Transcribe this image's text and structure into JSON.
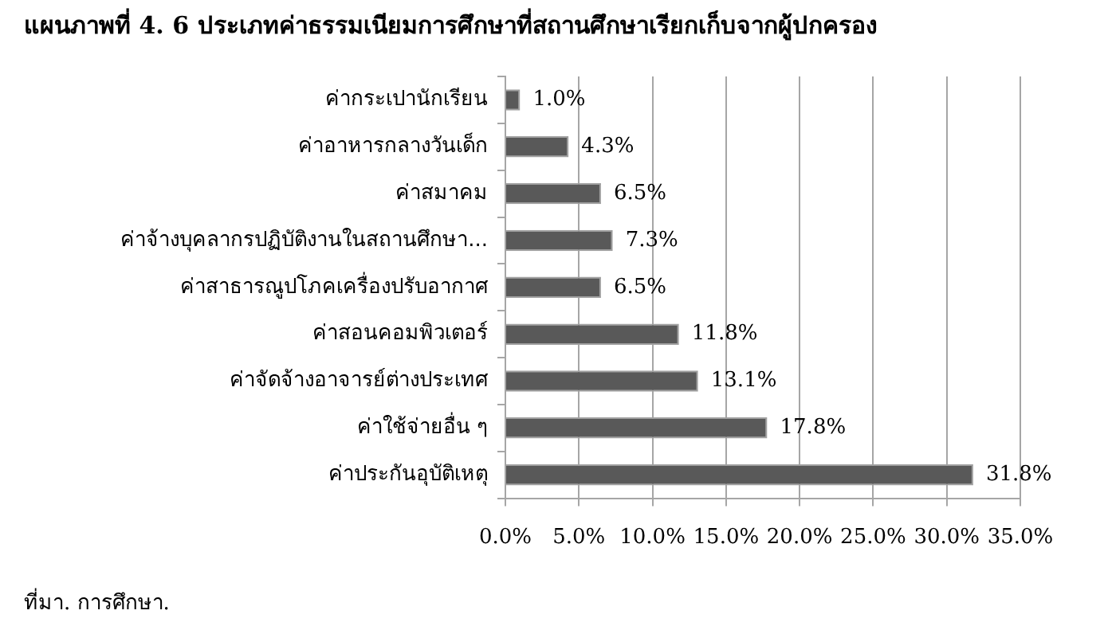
{
  "chart_data": {
    "type": "bar",
    "orientation": "horizontal",
    "title": "แผนภาพที่ 4. 6 ประเภทค่าธรรมเนียมการศึกษาที่สถานศึกษาเรียกเก็บจากผู้ปกครอง",
    "categories": [
      "ค่ากระเปานักเรียน",
      "ค่าอาหารกลางวันเด็ก",
      "ค่าสมาคม",
      "ค่าจ้างบุคลากรปฏิบัติงานในสถานศึกษา...",
      "ค่าสาธารณูปโภคเครื่องปรับอากาศ",
      "ค่าสอนคอมพิวเตอร์",
      "ค่าจัดจ้างอาจารย์ต่างประเทศ",
      "ค่าใช้จ่ายอื่น ๆ",
      "ค่าประกันอุบัติเหตุ"
    ],
    "values": [
      1.0,
      4.3,
      6.5,
      7.3,
      6.5,
      11.8,
      13.1,
      17.8,
      31.8
    ],
    "value_labels": [
      "1.0%",
      "4.3%",
      "6.5%",
      "7.3%",
      "6.5%",
      "11.8%",
      "13.1%",
      "17.8%",
      "31.8%"
    ],
    "color": "#595959",
    "xlim": [
      0,
      35
    ],
    "xticks": [
      {
        "value": 0,
        "label": "0.0%"
      },
      {
        "value": 5,
        "label": "5.0%"
      },
      {
        "value": 10,
        "label": "10.0%"
      },
      {
        "value": 15,
        "label": "15.0%"
      },
      {
        "value": 20,
        "label": "20.0%"
      },
      {
        "value": 25,
        "label": "25.0%"
      },
      {
        "value": 30,
        "label": "30.0%"
      },
      {
        "value": 35,
        "label": "35.0%"
      }
    ],
    "grid": "x",
    "legend": false,
    "annotations": [
      "ที่มา. การศึกษา."
    ]
  }
}
